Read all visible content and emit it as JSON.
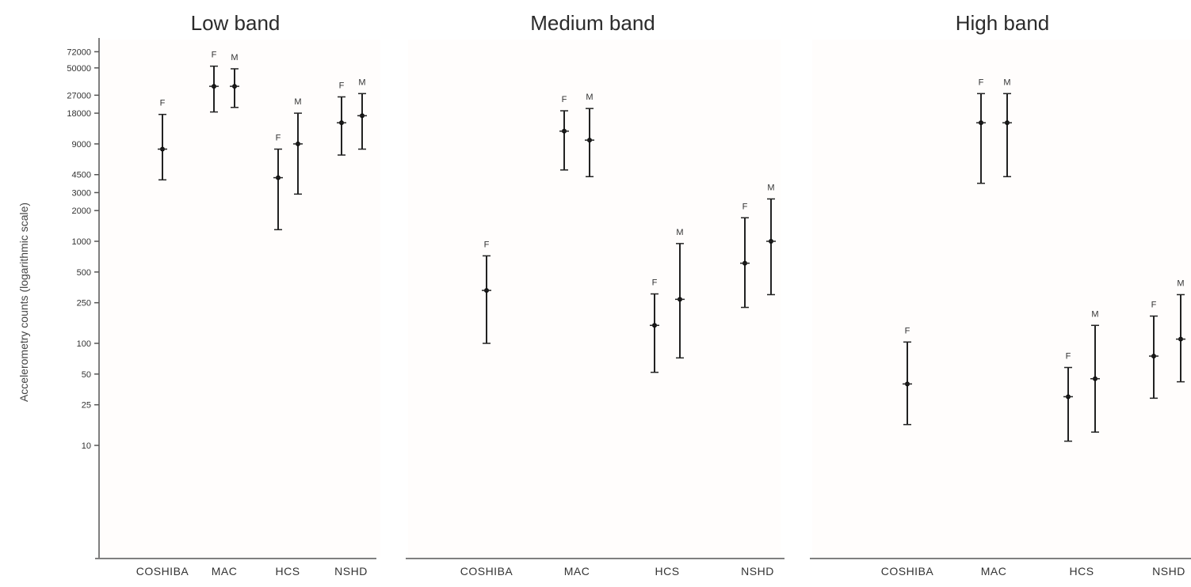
{
  "chart_data": {
    "type": "errorbar",
    "y_axis": {
      "label": "Accelerometry counts (logarithmic scale)",
      "scale": "log",
      "ticks": [
        10,
        25,
        50,
        100,
        250,
        500,
        1000,
        2000,
        3000,
        4500,
        9000,
        18000,
        27000,
        50000,
        72000
      ],
      "tick_labels": [
        "10",
        "25",
        "50",
        "100",
        "250",
        "500",
        "1000",
        "2000",
        "3000",
        "4500",
        "9000",
        "18000",
        "27000",
        "50000",
        "72000"
      ]
    },
    "categories": [
      "COSHIBA",
      "MAC",
      "HCS",
      "NSHD"
    ],
    "panels": [
      {
        "title": "Low band",
        "points": [
          {
            "category": "COSHIBA",
            "sex": "F",
            "value": 8000,
            "low": 4000,
            "high": 17500
          },
          {
            "category": "MAC",
            "sex": "F",
            "value": 33000,
            "low": 18500,
            "high": 52000
          },
          {
            "category": "MAC",
            "sex": "M",
            "value": 33000,
            "low": 20500,
            "high": 49000
          },
          {
            "category": "HCS",
            "sex": "F",
            "value": 4200,
            "low": 1300,
            "high": 8000
          },
          {
            "category": "HCS",
            "sex": "M",
            "value": 9000,
            "low": 2900,
            "high": 18000
          },
          {
            "category": "NSHD",
            "sex": "F",
            "value": 14500,
            "low": 7000,
            "high": 26000
          },
          {
            "category": "NSHD",
            "sex": "M",
            "value": 17000,
            "low": 8000,
            "high": 28000
          }
        ]
      },
      {
        "title": "Medium band",
        "points": [
          {
            "category": "COSHIBA",
            "sex": "F",
            "value": 330,
            "low": 100,
            "high": 720
          },
          {
            "category": "MAC",
            "sex": "F",
            "value": 12000,
            "low": 5000,
            "high": 19000
          },
          {
            "category": "MAC",
            "sex": "M",
            "value": 9800,
            "low": 4300,
            "high": 20000
          },
          {
            "category": "HCS",
            "sex": "F",
            "value": 150,
            "low": 52,
            "high": 305
          },
          {
            "category": "HCS",
            "sex": "M",
            "value": 270,
            "low": 72,
            "high": 950
          },
          {
            "category": "NSHD",
            "sex": "F",
            "value": 610,
            "low": 225,
            "high": 1700
          },
          {
            "category": "NSHD",
            "sex": "M",
            "value": 1000,
            "low": 300,
            "high": 2600
          }
        ]
      },
      {
        "title": "High band",
        "points": [
          {
            "category": "COSHIBA",
            "sex": "F",
            "value": 40,
            "low": 16,
            "high": 103
          },
          {
            "category": "MAC",
            "sex": "F",
            "value": 14500,
            "low": 3700,
            "high": 28000
          },
          {
            "category": "MAC",
            "sex": "M",
            "value": 14500,
            "low": 4300,
            "high": 28000
          },
          {
            "category": "HCS",
            "sex": "F",
            "value": 30,
            "low": 11,
            "high": 58
          },
          {
            "category": "HCS",
            "sex": "M",
            "value": 45,
            "low": 13.5,
            "high": 150
          },
          {
            "category": "NSHD",
            "sex": "F",
            "value": 75,
            "low": 29,
            "high": 185
          },
          {
            "category": "NSHD",
            "sex": "M",
            "value": 110,
            "low": 42,
            "high": 300
          }
        ]
      }
    ]
  }
}
